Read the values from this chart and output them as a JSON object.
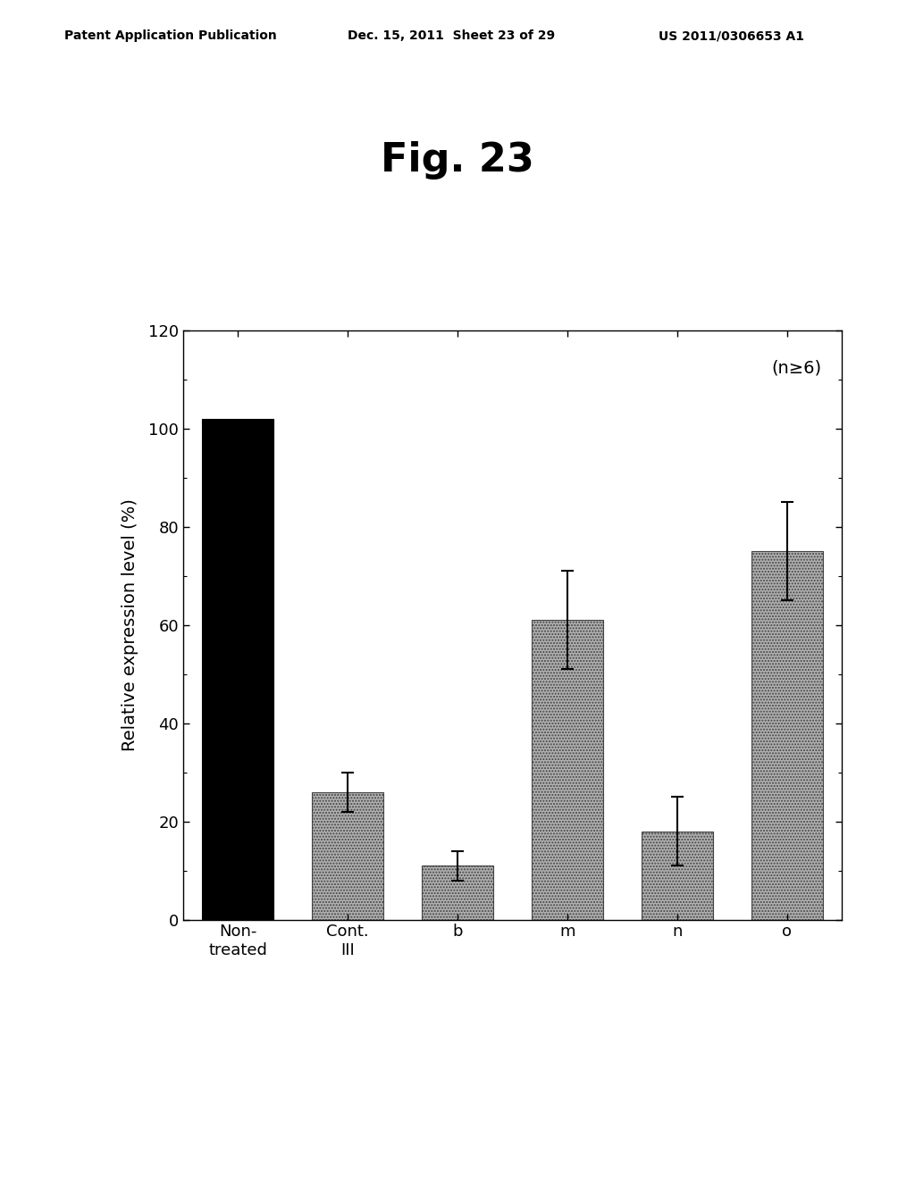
{
  "title": "Fig. 23",
  "header_left": "Patent Application Publication",
  "header_center": "Dec. 15, 2011  Sheet 23 of 29",
  "header_right": "US 2011/0306653 A1",
  "ylabel": "Relative expression level (%)",
  "annotation": "(n≥6)",
  "categories": [
    "Non-\ntreated",
    "Cont.\nIII",
    "b",
    "m",
    "n",
    "o"
  ],
  "values": [
    102,
    26,
    11,
    61,
    18,
    75
  ],
  "errors": [
    0,
    4,
    3,
    10,
    7,
    10
  ],
  "bar_colors": [
    "#000000",
    "#aaaaaa",
    "#aaaaaa",
    "#aaaaaa",
    "#aaaaaa",
    "#aaaaaa"
  ],
  "bar_hatch": [
    null,
    ".....",
    ".....",
    ".....",
    ".....",
    "....."
  ],
  "ylim": [
    0,
    120
  ],
  "yticks": [
    0,
    20,
    40,
    60,
    80,
    100,
    120
  ],
  "background_color": "#ffffff",
  "title_fontsize": 32,
  "axis_label_fontsize": 14,
  "tick_fontsize": 13,
  "header_fontsize": 10,
  "annot_fontsize": 14
}
